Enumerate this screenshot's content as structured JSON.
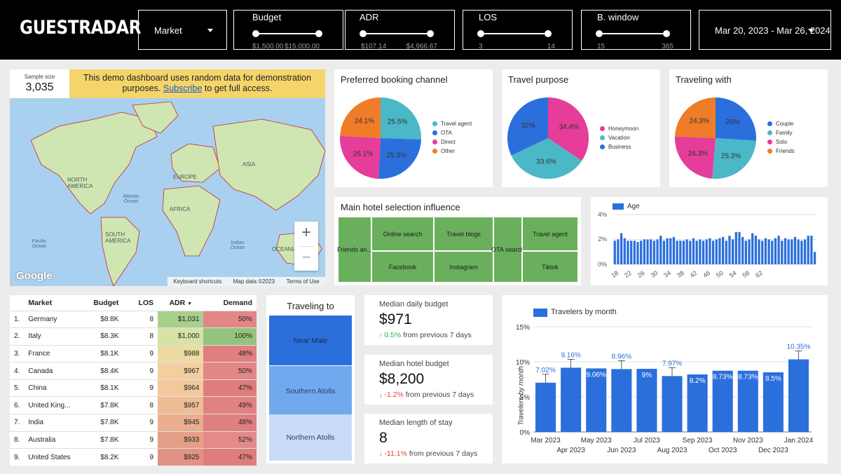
{
  "brand": "GUESTRADAR",
  "filters": {
    "market": {
      "label": "Market"
    },
    "budget": {
      "label": "Budget",
      "min": "$1,500.00",
      "max": "$15,000.00"
    },
    "adr": {
      "label": "ADR",
      "min": "$107.14",
      "max": "$4,966.67"
    },
    "los": {
      "label": "LOS",
      "min": "3",
      "max": "14"
    },
    "bwindow": {
      "label": "B. window",
      "min": "15",
      "max": "365"
    },
    "date_range": "Mar 20, 2023 - Mar 26, 2024"
  },
  "sample": {
    "label": "Sample size",
    "value": "3,035"
  },
  "banner": {
    "text_before": "This demo dashboard uses random data for demonstration purposes. ",
    "link": "Subscribe",
    "text_after": " to get full access."
  },
  "map": {
    "labels": {
      "north_america": "NORTH AMERICA",
      "south_america": "SOUTH AMERICA",
      "europe": "EUROPE",
      "africa": "AFRICA",
      "asia": "ASIA",
      "atlantic": "Atlantic Ocean",
      "pacific": "Pacific Ocean",
      "indian": "Indian Ocean",
      "oceania": "OCEANIA"
    },
    "zoom_in": "+",
    "zoom_out": "−",
    "google": "Google",
    "footer": {
      "shortcuts": "Keyboard shortcuts",
      "mapdata": "Map data ©2023",
      "terms": "Terms of Use"
    }
  },
  "pies": [
    {
      "title": "Preferred booking channel",
      "slices": [
        {
          "label": "Travel agent",
          "value": 25.5,
          "text": "25.5%",
          "color": "#4ab8c6"
        },
        {
          "label": "OTA",
          "value": 25.3,
          "text": "25.3%",
          "color": "#2b6fdd"
        },
        {
          "label": "Direct",
          "value": 25.1,
          "text": "25.1%",
          "color": "#e63c9a"
        },
        {
          "label": "Other",
          "value": 24.1,
          "text": "24.1%",
          "color": "#ee7c28"
        }
      ]
    },
    {
      "title": "Travel purpose",
      "slices": [
        {
          "label": "Honeymoon",
          "value": 34.4,
          "text": "34.4%",
          "color": "#e63c9a"
        },
        {
          "label": "Vacation",
          "value": 33.6,
          "text": "33.6%",
          "color": "#4ab8c6"
        },
        {
          "label": "Business",
          "value": 32,
          "text": "32%",
          "color": "#2b6fdd"
        }
      ]
    },
    {
      "title": "Traveling with",
      "slices": [
        {
          "label": "Couple",
          "value": 26,
          "text": "26%",
          "color": "#2b6fdd"
        },
        {
          "label": "Family",
          "value": 25.3,
          "text": "25.3%",
          "color": "#4ab8c6"
        },
        {
          "label": "Solo",
          "value": 24.3,
          "text": "24.3%",
          "color": "#e63c9a"
        },
        {
          "label": "Friends",
          "value": 24.3,
          "text": "24.3%",
          "color": "#ee7c28"
        }
      ]
    }
  ],
  "influence": {
    "title": "Main hotel selection influence",
    "cells": [
      "Friends an...",
      "Online search",
      "Facebook",
      "Travel blogs",
      "Instagram",
      "OTA search",
      "Travel agent",
      "Tiktok"
    ]
  },
  "age_chart": {
    "legend": "Age",
    "y_ticks": [
      "4%",
      "2%",
      "0%"
    ],
    "x_ticks": [
      "18",
      "22",
      "26",
      "30",
      "34",
      "38",
      "42",
      "46",
      "50",
      "54",
      "58",
      "62"
    ],
    "values": [
      1.9,
      2.0,
      2.5,
      2.1,
      1.9,
      1.9,
      1.9,
      1.8,
      1.9,
      2.0,
      2.0,
      2.0,
      1.9,
      2.0,
      2.3,
      1.9,
      2.1,
      2.1,
      2.2,
      1.9,
      1.9,
      1.9,
      2.0,
      1.9,
      2.1,
      1.9,
      2.0,
      1.9,
      2.0,
      2.1,
      1.9,
      2.0,
      2.1,
      2.2,
      1.9,
      2.3,
      2.0,
      2.6,
      2.6,
      2.2,
      1.9,
      2.0,
      2.5,
      2.3,
      2.0,
      1.9,
      2.1,
      2.0,
      1.9,
      2.1,
      2.3,
      1.9,
      2.1,
      2.0,
      2.0,
      2.2,
      2.0,
      1.9,
      2.0,
      2.3,
      2.3,
      1.0
    ]
  },
  "market_table": {
    "headers": {
      "market": "Market",
      "budget": "Budget",
      "los": "LOS",
      "adr": "ADR",
      "demand": "Demand"
    },
    "sort_icon": "▼",
    "rows": [
      {
        "n": "1.",
        "market": "Germany",
        "budget": "$8.8K",
        "los": "8",
        "adr": "$1,031",
        "demand": "50%",
        "adr_bg": "#a8d08d",
        "dem_bg": "#e38686"
      },
      {
        "n": "2.",
        "market": "Italy",
        "budget": "$8.3K",
        "los": "8",
        "adr": "$1,000",
        "demand": "100%",
        "adr_bg": "#d6e3a5",
        "dem_bg": "#93c47d"
      },
      {
        "n": "3.",
        "market": "France",
        "budget": "$8.1K",
        "los": "9",
        "adr": "$988",
        "demand": "48%",
        "adr_bg": "#ecdba3",
        "dem_bg": "#e07f7f"
      },
      {
        "n": "4.",
        "market": "Canada",
        "budget": "$8.4K",
        "los": "9",
        "adr": "$967",
        "demand": "50%",
        "adr_bg": "#f3cfa0",
        "dem_bg": "#e38686"
      },
      {
        "n": "5.",
        "market": "China",
        "budget": "$8.1K",
        "los": "9",
        "adr": "$964",
        "demand": "47%",
        "adr_bg": "#f2c99c",
        "dem_bg": "#df7d7d"
      },
      {
        "n": "6.",
        "market": "United King...",
        "budget": "$7.8K",
        "los": "8",
        "adr": "$957",
        "demand": "49%",
        "adr_bg": "#eebc95",
        "dem_bg": "#e18282"
      },
      {
        "n": "7.",
        "market": "India",
        "budget": "$7.8K",
        "los": "9",
        "adr": "$945",
        "demand": "48%",
        "adr_bg": "#eaae8e",
        "dem_bg": "#e07f7f"
      },
      {
        "n": "8.",
        "market": "Australia",
        "budget": "$7.8K",
        "los": "9",
        "adr": "$933",
        "demand": "52%",
        "adr_bg": "#e59f88",
        "dem_bg": "#e48a8a"
      },
      {
        "n": "9.",
        "market": "United States",
        "budget": "$8.2K",
        "los": "9",
        "adr": "$925",
        "demand": "47%",
        "adr_bg": "#e29282",
        "dem_bg": "#df7d7d"
      }
    ]
  },
  "traveling_to": {
    "title": "Traveling to",
    "items": [
      {
        "label": "Near Male",
        "color": "#2b6fdd"
      },
      {
        "label": "Southern Atolls",
        "color": "#72a8ee"
      },
      {
        "label": "Northern Atolls",
        "color": "#c8dcf9"
      }
    ]
  },
  "kpis": [
    {
      "label": "Median daily budget",
      "value": "$971",
      "delta_icon": "↑",
      "delta": "0.5%",
      "suffix": "from previous 7 days",
      "color": "#34a853"
    },
    {
      "label": "Median hotel budget",
      "value": "$8,200",
      "delta_icon": "↓",
      "delta": "-1.2%",
      "suffix": "from previous 7 days",
      "color": "#ea4335"
    },
    {
      "label": "Median length of stay",
      "value": "8",
      "delta_icon": "↓",
      "delta": "-11.1%",
      "suffix": "from previous 7 days",
      "color": "#ea4335"
    }
  ],
  "chart_data": {
    "type": "bar",
    "title": "Travelers by month",
    "ylabel": "Travelers by month",
    "xlabel": "",
    "categories": [
      "Mar 2023",
      "Apr 2023",
      "May 2023",
      "Jun 2023",
      "Jul 2023",
      "Aug 2023",
      "Sep 2023",
      "Oct 2023",
      "Nov 2023",
      "Dec 2023",
      "Jan 2024"
    ],
    "values": [
      7.02,
      9.16,
      9.06,
      8.96,
      9,
      7.97,
      8.2,
      8.73,
      8.73,
      8.5,
      10.35
    ],
    "labels": [
      "7.02%",
      "9.16%",
      "9.06%",
      "8.96%",
      "9%",
      "7.97%",
      "8.2%",
      "8.73%",
      "8.73%",
      "8.5%",
      "10.35%"
    ],
    "y_ticks": [
      "15%",
      "10%",
      "5%",
      "0%"
    ],
    "ylim": [
      0,
      15
    ],
    "color": "#2b6fdd"
  }
}
